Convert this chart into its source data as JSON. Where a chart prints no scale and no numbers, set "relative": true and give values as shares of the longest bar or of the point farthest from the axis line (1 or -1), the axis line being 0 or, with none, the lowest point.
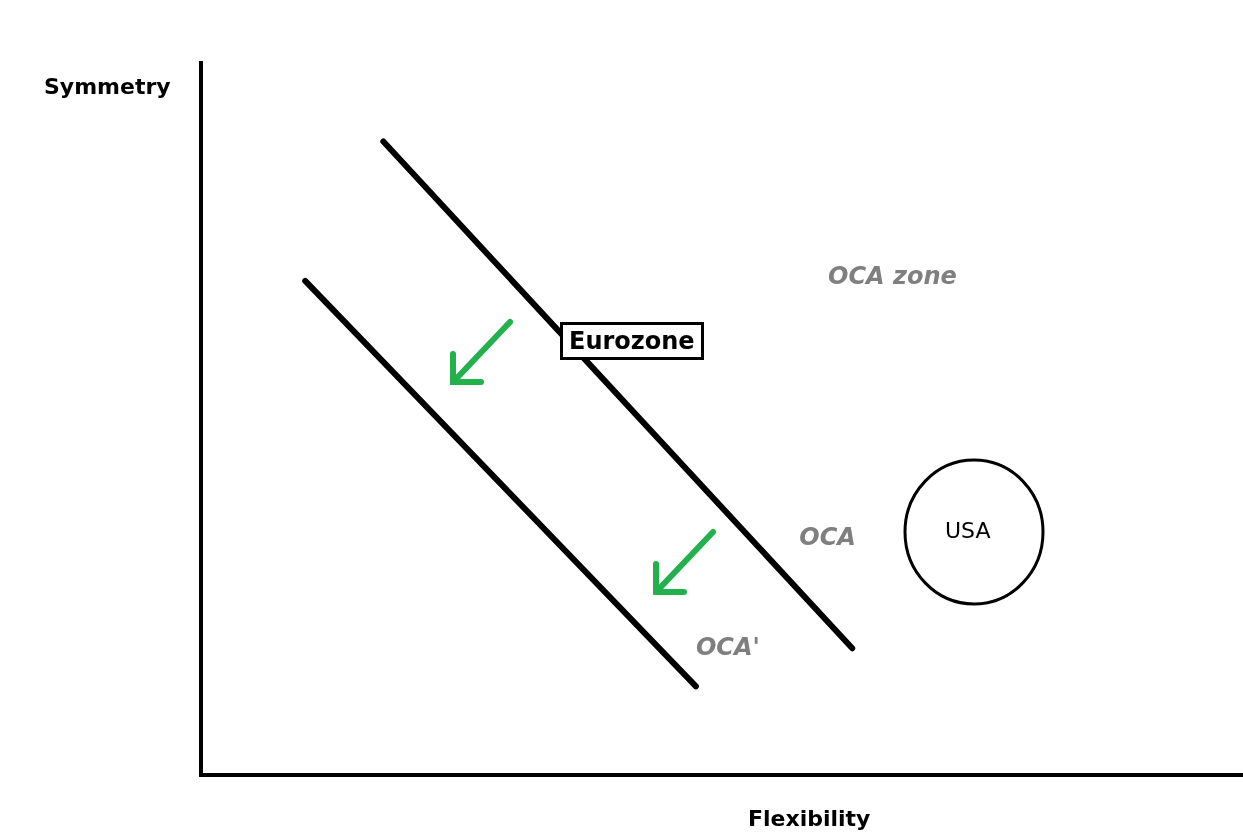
{
  "chart_data": {
    "type": "line",
    "relative": true,
    "xlabel": "Flexibility",
    "ylabel": "Symmetry",
    "categories": [
      null,
      null,
      null,
      null,
      null,
      null,
      null,
      null,
      null,
      null,
      null,
      null,
      null,
      null,
      null,
      null,
      null,
      null,
      null,
      null,
      null,
      null,
      null,
      null,
      null,
      null,
      null,
      null,
      null,
      null,
      null,
      null,
      null,
      null,
      null,
      null,
      null,
      null,
      null,
      null,
      null
    ],
    "series": [
      {
        "name": "OCA",
        "color": "#000000",
        "values": [
          null,
          null,
          null,
          null,
          null,
          null,
          null,
          1.0,
          null,
          null,
          null,
          null,
          null,
          null,
          null,
          null,
          null,
          null,
          null,
          null,
          null,
          null,
          null,
          null,
          null,
          0.2,
          null,
          null,
          null,
          null,
          null,
          null,
          null,
          null,
          null,
          null,
          null,
          null,
          null,
          null,
          null
        ]
      },
      {
        "name": "OCA'",
        "color": "#000000",
        "values": [
          null,
          null,
          null,
          null,
          0.78,
          null,
          null,
          null,
          null,
          null,
          null,
          null,
          null,
          null,
          null,
          null,
          null,
          null,
          null,
          0.14,
          null,
          null,
          null,
          null,
          null,
          null,
          null,
          null,
          null,
          null,
          null,
          null,
          null,
          null,
          null,
          null,
          null,
          null,
          null,
          null,
          null
        ]
      }
    ],
    "annotations": [
      "OCA zone",
      "Eurozone",
      "USA"
    ],
    "grid": false,
    "legend": false,
    "marker": "none",
    "line_style": "solid"
  }
}
